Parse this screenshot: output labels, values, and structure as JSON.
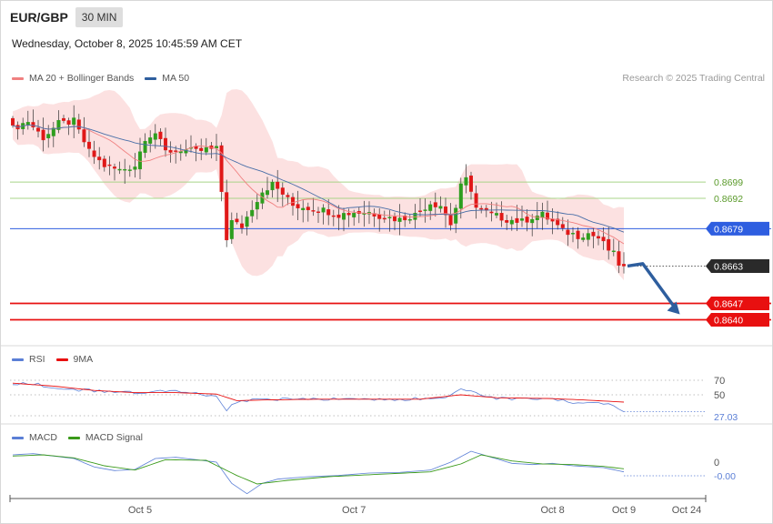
{
  "header": {
    "symbol": "EUR/GBP",
    "timeframe": "30 MIN"
  },
  "datetime": "Wednesday, October 8, 2025 10:45:59 AM CET",
  "copyright": "Research © 2025 Trading Central",
  "legend_main": [
    {
      "label": "MA 20 + Bollinger Bands",
      "color": "#f08080"
    },
    {
      "label": "MA 50",
      "color": "#2e5e9e"
    }
  ],
  "legend_rsi": [
    {
      "label": "RSI",
      "color": "#5b7fd6"
    },
    {
      "label": "9MA",
      "color": "#e81010"
    }
  ],
  "legend_macd": [
    {
      "label": "MACD",
      "color": "#5b7fd6"
    },
    {
      "label": "MACD Signal",
      "color": "#3a9a1a"
    }
  ],
  "colors": {
    "bull": "#2e9e1e",
    "bear": "#e01818",
    "band_fill": "#fcdcdc",
    "ma20": "#f08080",
    "ma50": "#4a6fa8",
    "pivot": "#2e5ee0",
    "support": "#e81010",
    "resistance": "#a8d488",
    "current": "#2a2a2a",
    "arrow": "#2e5e9e",
    "rsi": "#5b7fd6",
    "rsi_ma": "#e81010",
    "macd": "#5b7fd6",
    "macd_signal": "#3a9a1a"
  },
  "chart_data": [
    {
      "type": "candlestick",
      "ylim": [
        0.8632,
        0.8738
      ],
      "n_bars": 135,
      "x_ticks": [
        {
          "label": "Oct 5",
          "index": 25
        },
        {
          "label": "Oct 7",
          "index": 67
        },
        {
          "label": "Oct 8",
          "index": 106
        },
        {
          "label": "Oct 9",
          "index": 120
        },
        {
          "label": "Oct 24",
          "index": 131
        }
      ],
      "levels": [
        {
          "value": 0.8699,
          "label": "0.8699",
          "kind": "resistance"
        },
        {
          "value": 0.8692,
          "label": "0.8692",
          "kind": "resistance"
        },
        {
          "value": 0.8679,
          "label": "0.8679",
          "kind": "pivot"
        },
        {
          "value": 0.8663,
          "label": "0.8663",
          "kind": "current"
        },
        {
          "value": 0.8647,
          "label": "0.8647",
          "kind": "support"
        },
        {
          "value": 0.864,
          "label": "0.8640",
          "kind": "support"
        }
      ],
      "close_anchors": [
        [
          0,
          0.8722
        ],
        [
          3,
          0.8725
        ],
        [
          6,
          0.8718
        ],
        [
          9,
          0.8724
        ],
        [
          12,
          0.8725
        ],
        [
          15,
          0.8712
        ],
        [
          18,
          0.8706
        ],
        [
          21,
          0.8704
        ],
        [
          24,
          0.8706
        ],
        [
          26,
          0.8718
        ],
        [
          28,
          0.872
        ],
        [
          30,
          0.8712
        ],
        [
          33,
          0.8713
        ],
        [
          36,
          0.8712
        ],
        [
          38,
          0.8713
        ],
        [
          40,
          0.8713
        ],
        [
          41,
          0.8695
        ],
        [
          42,
          0.8675
        ],
        [
          43,
          0.8682
        ],
        [
          45,
          0.868
        ],
        [
          47,
          0.8688
        ],
        [
          49,
          0.8695
        ],
        [
          51,
          0.8698
        ],
        [
          53,
          0.8694
        ],
        [
          55,
          0.8689
        ],
        [
          58,
          0.8688
        ],
        [
          61,
          0.8687
        ],
        [
          64,
          0.8685
        ],
        [
          67,
          0.8686
        ],
        [
          70,
          0.8686
        ],
        [
          73,
          0.8684
        ],
        [
          76,
          0.8683
        ],
        [
          79,
          0.8685
        ],
        [
          82,
          0.869
        ],
        [
          84,
          0.8689
        ],
        [
          86,
          0.8681
        ],
        [
          87,
          0.8688
        ],
        [
          88,
          0.8697
        ],
        [
          89,
          0.87
        ],
        [
          90,
          0.8696
        ],
        [
          91,
          0.8688
        ],
        [
          94,
          0.8685
        ],
        [
          97,
          0.8683
        ],
        [
          100,
          0.8682
        ],
        [
          102,
          0.8684
        ],
        [
          104,
          0.8685
        ],
        [
          106,
          0.8682
        ],
        [
          108,
          0.8678
        ],
        [
          111,
          0.8676
        ],
        [
          113,
          0.8677
        ],
        [
          115,
          0.8675
        ],
        [
          117,
          0.867
        ],
        [
          118,
          0.8668
        ],
        [
          119,
          0.8664
        ],
        [
          120,
          0.8663
        ]
      ],
      "projection": {
        "from": [
          120,
          0.8663
        ],
        "via": [
          123,
          0.8664
        ],
        "to": [
          131,
          0.864
        ]
      }
    },
    {
      "type": "line",
      "name": "RSI",
      "y_ticks": [
        70,
        50
      ],
      "last_value": "27.03",
      "ylim": [
        15,
        90
      ],
      "rsi_anchors": [
        [
          0,
          66
        ],
        [
          5,
          64
        ],
        [
          10,
          58
        ],
        [
          15,
          56
        ],
        [
          20,
          54
        ],
        [
          25,
          53
        ],
        [
          30,
          55
        ],
        [
          35,
          53
        ],
        [
          40,
          48
        ],
        [
          42,
          30
        ],
        [
          44,
          40
        ],
        [
          48,
          45
        ],
        [
          52,
          44
        ],
        [
          56,
          45
        ],
        [
          60,
          43
        ],
        [
          65,
          45
        ],
        [
          70,
          44
        ],
        [
          75,
          43
        ],
        [
          80,
          45
        ],
        [
          85,
          45
        ],
        [
          88,
          58
        ],
        [
          91,
          52
        ],
        [
          95,
          45
        ],
        [
          100,
          44
        ],
        [
          105,
          46
        ],
        [
          110,
          40
        ],
        [
          115,
          38
        ],
        [
          118,
          36
        ],
        [
          120,
          27
        ]
      ],
      "ma_anchors": [
        [
          0,
          66
        ],
        [
          8,
          62
        ],
        [
          16,
          56
        ],
        [
          24,
          53
        ],
        [
          32,
          53
        ],
        [
          40,
          51
        ],
        [
          44,
          42
        ],
        [
          50,
          43
        ],
        [
          60,
          44
        ],
        [
          70,
          44
        ],
        [
          80,
          44
        ],
        [
          88,
          50
        ],
        [
          95,
          46
        ],
        [
          105,
          45
        ],
        [
          112,
          43
        ],
        [
          120,
          40
        ]
      ]
    },
    {
      "type": "line",
      "name": "MACD",
      "y_ticks": [
        0
      ],
      "last_value": "-0.00",
      "ylim": [
        -6,
        3
      ],
      "macd_anchors": [
        [
          0,
          1.2
        ],
        [
          4,
          1.4
        ],
        [
          8,
          1.0
        ],
        [
          12,
          0.6
        ],
        [
          16,
          -0.8
        ],
        [
          20,
          -1.4
        ],
        [
          24,
          -1.2
        ],
        [
          28,
          0.6
        ],
        [
          32,
          0.8
        ],
        [
          36,
          0.4
        ],
        [
          40,
          0.0
        ],
        [
          43,
          -3.5
        ],
        [
          46,
          -5.2
        ],
        [
          49,
          -3.5
        ],
        [
          52,
          -2.8
        ],
        [
          58,
          -2.4
        ],
        [
          64,
          -2.2
        ],
        [
          70,
          -1.8
        ],
        [
          76,
          -1.7
        ],
        [
          82,
          -1.3
        ],
        [
          86,
          0.0
        ],
        [
          90,
          1.8
        ],
        [
          94,
          0.8
        ],
        [
          98,
          -0.2
        ],
        [
          102,
          -0.4
        ],
        [
          106,
          -0.2
        ],
        [
          110,
          -0.6
        ],
        [
          116,
          -0.9
        ],
        [
          120,
          -1.6
        ]
      ],
      "signal_anchors": [
        [
          0,
          1.0
        ],
        [
          6,
          1.2
        ],
        [
          12,
          0.7
        ],
        [
          18,
          -0.6
        ],
        [
          24,
          -1.3
        ],
        [
          30,
          0.4
        ],
        [
          38,
          0.3
        ],
        [
          44,
          -2.2
        ],
        [
          48,
          -3.6
        ],
        [
          54,
          -3.0
        ],
        [
          62,
          -2.4
        ],
        [
          72,
          -2.0
        ],
        [
          82,
          -1.6
        ],
        [
          88,
          -0.3
        ],
        [
          92,
          1.2
        ],
        [
          98,
          0.2
        ],
        [
          104,
          -0.3
        ],
        [
          110,
          -0.4
        ],
        [
          116,
          -0.7
        ],
        [
          120,
          -1.1
        ]
      ]
    }
  ]
}
